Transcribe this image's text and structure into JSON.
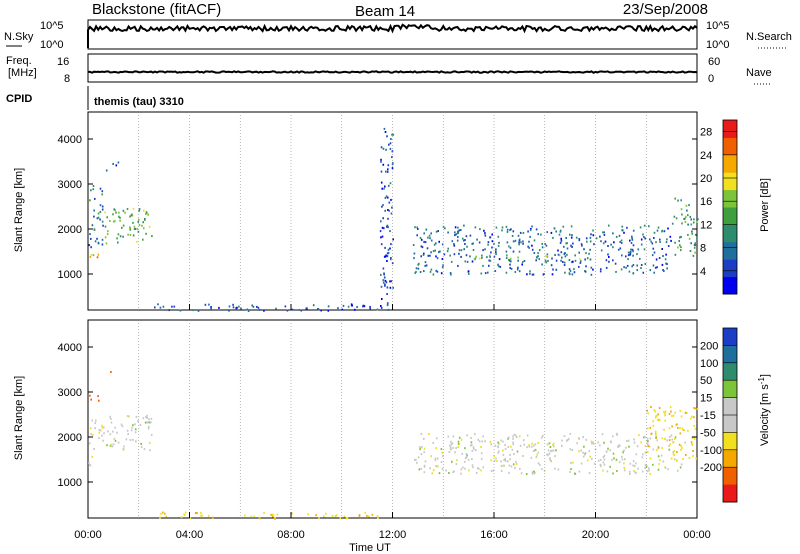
{
  "header": {
    "station": "Blackstone (fitACF)",
    "beam": "Beam 14",
    "date": "23/Sep/2008"
  },
  "top_panels": {
    "nsky": {
      "label": "N.Sky",
      "ticks": [
        "10^5",
        "10^0"
      ],
      "right_label": "N.Search",
      "right_ticks": [
        "10^5",
        "10^0"
      ]
    },
    "freq": {
      "label_line1": "Freq.",
      "label_line2": "[MHz]",
      "ticks": [
        "16",
        "8"
      ],
      "right_label": "Nave",
      "right_ticks": [
        "60",
        "0"
      ]
    },
    "cpid": {
      "label": "CPID",
      "value": "themis (tau) 3310"
    }
  },
  "x_axis": {
    "label": "Time UT",
    "ticks": [
      "00:00",
      "04:00",
      "08:00",
      "12:00",
      "16:00",
      "20:00",
      "00:00"
    ]
  },
  "chart_data": [
    {
      "type": "heatmap",
      "title": "",
      "ylabel": "Slant Range [km]",
      "xlabel": "Time UT",
      "ylim": [
        200,
        4600
      ],
      "xlim": [
        0,
        24
      ],
      "yticks": [
        "1000",
        "2000",
        "3000",
        "4000"
      ],
      "colorbar": {
        "label": "Power [dB]",
        "ticks": [
          "4",
          "8",
          "12",
          "16",
          "20",
          "24",
          "28"
        ],
        "range": [
          0,
          30
        ],
        "colors": [
          "#0000ee",
          "#1c3ec4",
          "#1e6e9e",
          "#2e8b6e",
          "#3f9f3f",
          "#7cc43a",
          "#f0e020",
          "#f4a800",
          "#f06000",
          "#e81a1a"
        ]
      },
      "echo_regions": [
        {
          "t": [
            0.0,
            0.5
          ],
          "r": [
            1300,
            1500
          ],
          "level": 22
        },
        {
          "t": [
            0.0,
            0.6
          ],
          "r": [
            1500,
            3000
          ],
          "level": 8
        },
        {
          "t": [
            0.6,
            2.5
          ],
          "r": [
            1700,
            2500
          ],
          "level": 14
        },
        {
          "t": [
            0.7,
            1.2
          ],
          "r": [
            3300,
            3500
          ],
          "level": 6
        },
        {
          "t": [
            12.8,
            23.0
          ],
          "r": [
            1000,
            2100
          ],
          "level": 7
        },
        {
          "t": [
            15.0,
            19.5
          ],
          "r": [
            1300,
            1450
          ],
          "level": 14
        },
        {
          "t": [
            23.0,
            24.0
          ],
          "r": [
            1400,
            2700
          ],
          "level": 12
        },
        {
          "t": [
            2.5,
            11.5
          ],
          "r": [
            200,
            350
          ],
          "level": 6
        },
        {
          "t": [
            11.5,
            12.0
          ],
          "r": [
            200,
            4300
          ],
          "level": 5
        }
      ]
    },
    {
      "type": "heatmap",
      "title": "",
      "ylabel": "Slant Range [km]",
      "xlabel": "Time UT",
      "ylim": [
        200,
        4600
      ],
      "xlim": [
        0,
        24
      ],
      "yticks": [
        "1000",
        "2000",
        "3000",
        "4000"
      ],
      "colorbar": {
        "label": "Velocity [m s^-1]",
        "ticks": [
          "200",
          "100",
          "50",
          "15",
          "-15",
          "-50",
          "-100",
          "-200"
        ],
        "colors": [
          "#1c3ec4",
          "#1e6e9e",
          "#2e8b6e",
          "#7cc43a",
          "#c8c8c8",
          "#c8c8c8",
          "#f0e020",
          "#f4a800",
          "#f06000",
          "#e81a1a"
        ]
      },
      "echo_regions": [
        {
          "t": [
            0.0,
            0.6
          ],
          "r": [
            1300,
            2400
          ],
          "level": 0
        },
        {
          "t": [
            0.6,
            2.5
          ],
          "r": [
            1700,
            2500
          ],
          "level": 0
        },
        {
          "t": [
            0.0,
            0.4
          ],
          "r": [
            2800,
            3000
          ],
          "level": -120
        },
        {
          "t": [
            0.8,
            1.0
          ],
          "r": [
            3400,
            3500
          ],
          "level": -120
        },
        {
          "t": [
            12.8,
            23.5
          ],
          "r": [
            1200,
            2100
          ],
          "level": 0
        },
        {
          "t": [
            2.5,
            11.5
          ],
          "r": [
            200,
            350
          ],
          "level": -40
        },
        {
          "t": [
            22.0,
            24.0
          ],
          "r": [
            1500,
            2700
          ],
          "level": -40
        }
      ]
    }
  ]
}
